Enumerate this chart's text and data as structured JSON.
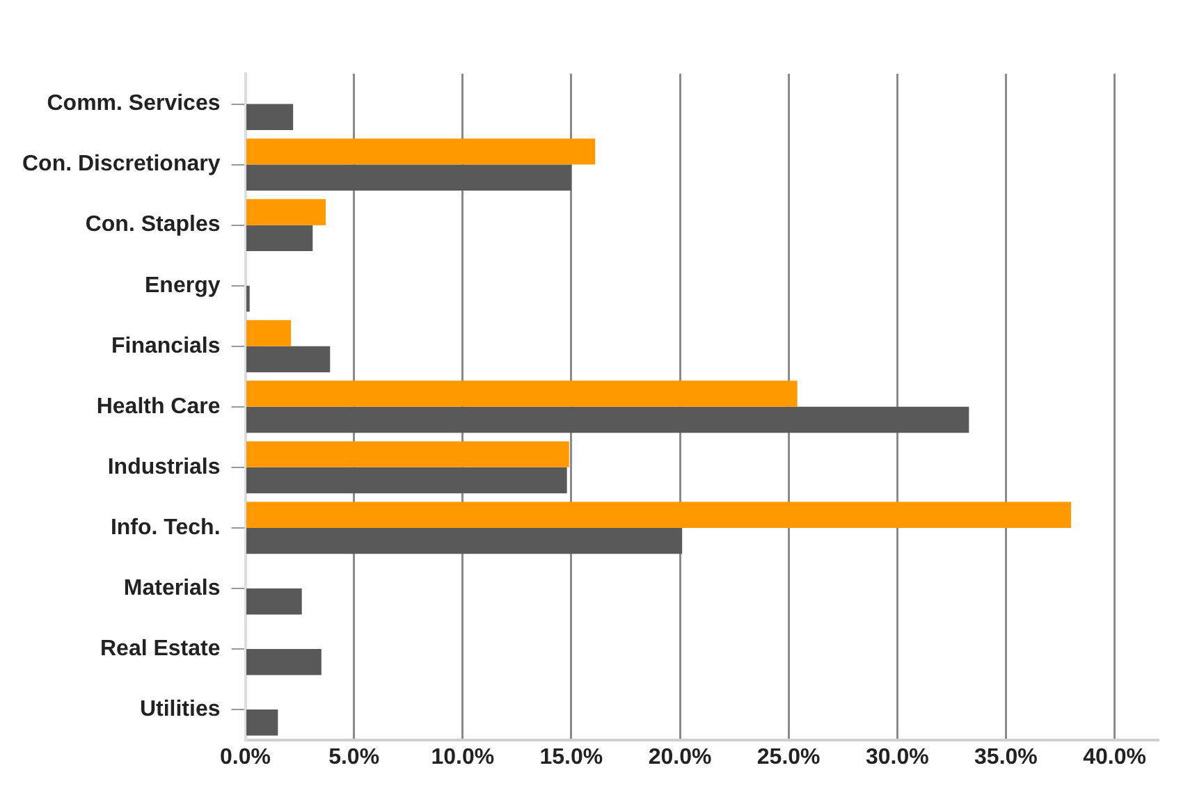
{
  "chart_data": {
    "type": "bar",
    "orientation": "horizontal",
    "categories": [
      "Comm. Services",
      "Con. Discretionary",
      "Con. Staples",
      "Energy",
      "Financials",
      "Health Care",
      "Industrials",
      "Info. Tech.",
      "Materials",
      "Real Estate",
      "Utilities"
    ],
    "series": [
      {
        "color": "#ff9900",
        "values": [
          0,
          16.1,
          3.7,
          0,
          2.1,
          25.4,
          14.9,
          38.0,
          0,
          0,
          0
        ]
      },
      {
        "color": "#595959",
        "values": [
          2.2,
          15.0,
          3.1,
          0.2,
          3.9,
          33.3,
          14.8,
          20.1,
          2.6,
          3.5,
          1.5
        ]
      }
    ],
    "xlim": [
      0,
      42
    ],
    "xticks": [
      {
        "value": 0,
        "label": "0.0%"
      },
      {
        "value": 5,
        "label": "5.0%"
      },
      {
        "value": 10,
        "label": "10.0%"
      },
      {
        "value": 15,
        "label": "15.0%"
      },
      {
        "value": 20,
        "label": "20.0%"
      },
      {
        "value": 25,
        "label": "25.0%"
      },
      {
        "value": 30,
        "label": "30.0%"
      },
      {
        "value": 35,
        "label": "35.0%"
      },
      {
        "value": 40,
        "label": "40.0%"
      }
    ],
    "grid": "x",
    "legend": false
  }
}
